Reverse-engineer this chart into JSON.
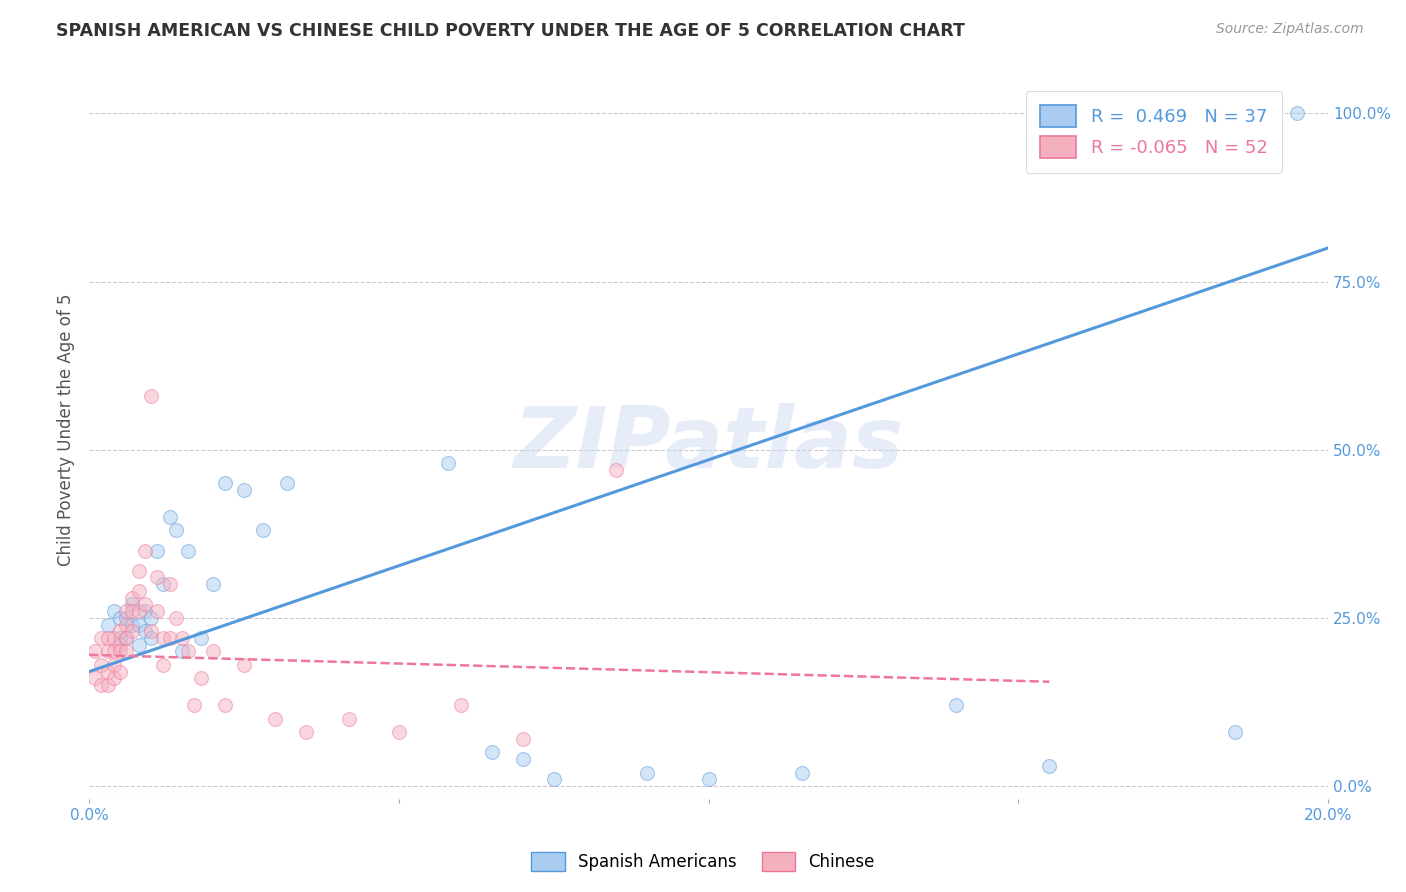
{
  "title": "SPANISH AMERICAN VS CHINESE CHILD POVERTY UNDER THE AGE OF 5 CORRELATION CHART",
  "source": "Source: ZipAtlas.com",
  "ylabel": "Child Poverty Under the Age of 5",
  "ytick_labels": [
    "0.0%",
    "25.0%",
    "50.0%",
    "75.0%",
    "100.0%"
  ],
  "ytick_vals": [
    0.0,
    0.25,
    0.5,
    0.75,
    1.0
  ],
  "xlim": [
    0.0,
    0.2
  ],
  "ylim": [
    -0.02,
    1.08
  ],
  "legend_blue_label": "Spanish Americans",
  "legend_pink_label": "Chinese",
  "r_blue": 0.469,
  "n_blue": 37,
  "r_pink": -0.065,
  "n_pink": 52,
  "blue_color": "#aaccf0",
  "pink_color": "#f5b0c0",
  "blue_line_color": "#5599dd",
  "pink_line_color": "#ee7799",
  "watermark": "ZIPatlas",
  "background_color": "#ffffff",
  "grid_color": "#cccccc",
  "blue_scatter_x": [
    0.003,
    0.004,
    0.005,
    0.005,
    0.006,
    0.006,
    0.007,
    0.007,
    0.008,
    0.008,
    0.009,
    0.009,
    0.01,
    0.01,
    0.011,
    0.012,
    0.013,
    0.014,
    0.015,
    0.016,
    0.018,
    0.02,
    0.022,
    0.025,
    0.028,
    0.032,
    0.058,
    0.065,
    0.07,
    0.075,
    0.09,
    0.1,
    0.115,
    0.14,
    0.155,
    0.185,
    0.195
  ],
  "blue_scatter_y": [
    0.24,
    0.26,
    0.22,
    0.25,
    0.22,
    0.25,
    0.24,
    0.27,
    0.21,
    0.24,
    0.23,
    0.26,
    0.22,
    0.25,
    0.35,
    0.3,
    0.4,
    0.38,
    0.2,
    0.35,
    0.22,
    0.3,
    0.45,
    0.44,
    0.38,
    0.45,
    0.48,
    0.05,
    0.04,
    0.01,
    0.02,
    0.01,
    0.02,
    0.12,
    0.03,
    0.08,
    1.0
  ],
  "pink_scatter_x": [
    0.001,
    0.001,
    0.002,
    0.002,
    0.002,
    0.003,
    0.003,
    0.003,
    0.003,
    0.004,
    0.004,
    0.004,
    0.004,
    0.005,
    0.005,
    0.005,
    0.005,
    0.006,
    0.006,
    0.006,
    0.006,
    0.007,
    0.007,
    0.007,
    0.008,
    0.008,
    0.008,
    0.009,
    0.009,
    0.01,
    0.01,
    0.011,
    0.011,
    0.012,
    0.012,
    0.013,
    0.013,
    0.014,
    0.015,
    0.016,
    0.017,
    0.018,
    0.02,
    0.022,
    0.025,
    0.03,
    0.035,
    0.042,
    0.05,
    0.06,
    0.07,
    0.085
  ],
  "pink_scatter_y": [
    0.2,
    0.16,
    0.22,
    0.18,
    0.15,
    0.2,
    0.17,
    0.22,
    0.15,
    0.22,
    0.2,
    0.18,
    0.16,
    0.23,
    0.21,
    0.2,
    0.17,
    0.26,
    0.24,
    0.22,
    0.2,
    0.28,
    0.26,
    0.23,
    0.32,
    0.29,
    0.26,
    0.35,
    0.27,
    0.58,
    0.23,
    0.31,
    0.26,
    0.22,
    0.18,
    0.3,
    0.22,
    0.25,
    0.22,
    0.2,
    0.12,
    0.16,
    0.2,
    0.12,
    0.18,
    0.1,
    0.08,
    0.1,
    0.08,
    0.12,
    0.07,
    0.47
  ],
  "blue_trend_x": [
    0.0,
    0.2
  ],
  "blue_trend_y": [
    0.17,
    0.8
  ],
  "pink_trend_x": [
    0.0,
    0.155
  ],
  "pink_trend_y": [
    0.195,
    0.155
  ],
  "scatter_size": 100,
  "scatter_alpha": 0.5,
  "scatter_linewidth": 0.8
}
